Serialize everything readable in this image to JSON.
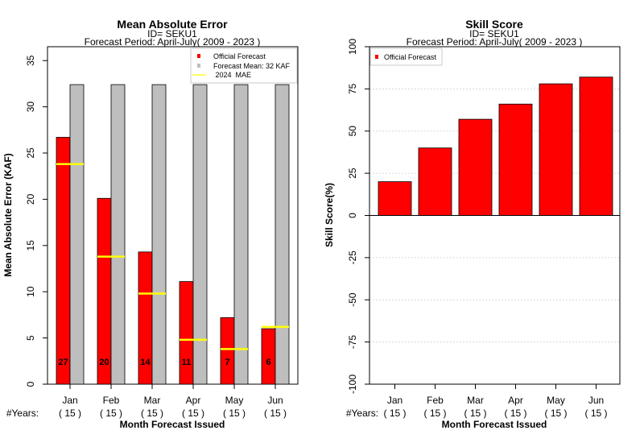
{
  "chart_data": [
    {
      "type": "bar",
      "title": "Mean Absolute Error",
      "subtitle_lines": [
        "ID= SEKU1",
        "Forecast Period: April-July( 2009 - 2023 )"
      ],
      "ylabel": "Mean Absolute Error (KAF)",
      "xlabel": "Month Forecast Issued",
      "years_label": "#Years:",
      "categories": [
        "Jan",
        "Feb",
        "Mar",
        "Apr",
        "May",
        "Jun"
      ],
      "years": [
        "( 15 )",
        "( 15 )",
        "( 15 )",
        "( 15 )",
        "( 15 )",
        "( 15 )"
      ],
      "ylim": [
        0,
        36.5
      ],
      "yticks": [
        0,
        5,
        10,
        15,
        20,
        25,
        30,
        35
      ],
      "series": [
        {
          "name": "Official Forecast",
          "color": "#ff0000",
          "values": [
            26.7,
            20.1,
            14.3,
            11.1,
            7.2,
            6.0
          ]
        },
        {
          "name": "Forecast Mean: 32 KAF",
          "color": "#bebebe",
          "values": [
            32.4,
            32.4,
            32.4,
            32.4,
            32.4,
            32.4
          ]
        },
        {
          "name": " 2024  MAE",
          "color": "#ffff00",
          "values": [
            23.8,
            13.8,
            9.8,
            4.8,
            3.8,
            6.2
          ]
        }
      ],
      "bar_labels": [
        "27",
        "20",
        "14",
        "11",
        "7",
        "6"
      ],
      "legend_position": "top-right"
    },
    {
      "type": "bar",
      "title": "Skill Score",
      "subtitle_lines": [
        "ID= SEKU1",
        "Forecast Period: April-July( 2009 - 2023 )"
      ],
      "ylabel": "Skill Score(%)",
      "xlabel": "Month Forecast Issued",
      "years_label": "#Years:",
      "categories": [
        "Jan",
        "Feb",
        "Mar",
        "Apr",
        "May",
        "Jun"
      ],
      "years": [
        "( 15 )",
        "( 15 )",
        "( 15 )",
        "( 15 )",
        "( 15 )",
        "( 15 )"
      ],
      "ylim": [
        -100,
        100
      ],
      "yticks": [
        -100,
        -75,
        -50,
        -25,
        0,
        25,
        50,
        75,
        100
      ],
      "series": [
        {
          "name": "Official Forecast",
          "color": "#ff0000",
          "values": [
            20,
            40,
            57,
            66,
            78,
            82
          ]
        }
      ],
      "grid": true,
      "legend_position": "top-left"
    }
  ]
}
